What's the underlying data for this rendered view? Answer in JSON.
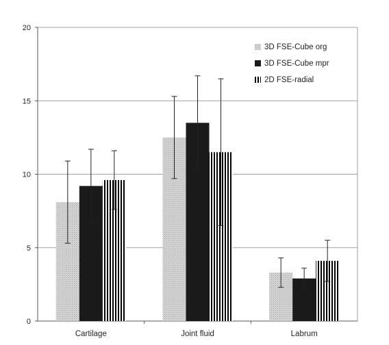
{
  "chart_data": {
    "type": "bar",
    "title": "",
    "xlabel": "",
    "ylabel": "",
    "categories": [
      "Cartilage",
      "Joint fluid",
      "Labrum"
    ],
    "ylim": [
      0,
      20
    ],
    "yticks": [
      0,
      5,
      10,
      15,
      20
    ],
    "grid": "horizontal",
    "legend_position": "top-right",
    "error_bars": true,
    "series": [
      {
        "name": "3D FSE-Cube org",
        "values": [
          8.1,
          12.5,
          3.3
        ],
        "errors": [
          2.8,
          2.8,
          1.0
        ],
        "pattern": "light-dotted",
        "color": "#c8c8c8"
      },
      {
        "name": "3D FSE-Cube mpr",
        "values": [
          9.2,
          13.5,
          2.9
        ],
        "errors": [
          2.5,
          3.2,
          0.7
        ],
        "pattern": "solid-black",
        "color": "#1a1a1a"
      },
      {
        "name": "2D FSE-radial",
        "values": [
          9.6,
          11.5,
          4.1
        ],
        "errors": [
          2.0,
          5.0,
          1.4
        ],
        "pattern": "vertical-stripes",
        "color": "#000000"
      }
    ]
  }
}
